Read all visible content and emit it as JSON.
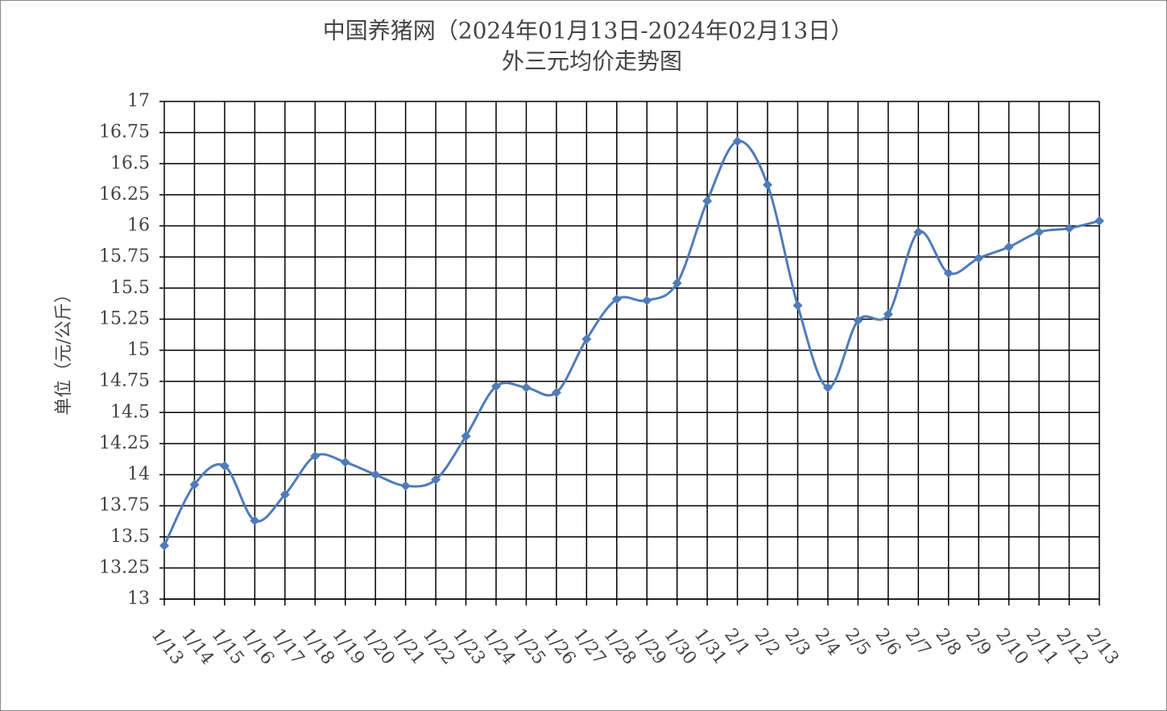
{
  "chart_data": {
    "type": "line",
    "title": [
      "中国养猪网（2024年01月13日-2024年02月13日）",
      "外三元均价走势图"
    ],
    "y_label": "单位（元/公斤）",
    "categories": [
      "1/13",
      "1/14",
      "1/15",
      "1/16",
      "1/17",
      "1/18",
      "1/19",
      "1/20",
      "1/21",
      "1/22",
      "1/23",
      "1/24",
      "1/25",
      "1/26",
      "1/27",
      "1/28",
      "1/29",
      "1/30",
      "1/31",
      "2/1",
      "2/2",
      "2/3",
      "2/4",
      "2/5",
      "2/6",
      "2/7",
      "2/8",
      "2/9",
      "2/10",
      "2/11",
      "2/12",
      "2/13"
    ],
    "values": [
      13.43,
      13.92,
      14.07,
      13.63,
      13.84,
      14.15,
      14.1,
      14.0,
      13.91,
      13.96,
      14.31,
      14.71,
      14.7,
      14.66,
      15.09,
      15.41,
      15.4,
      15.54,
      16.2,
      16.68,
      16.33,
      15.36,
      14.7,
      15.24,
      15.29,
      15.95,
      15.62,
      15.74,
      15.83,
      15.95,
      15.98,
      16.04
    ],
    "color": "#4f7bb8",
    "ylim": [
      13,
      17
    ],
    "yticks": [
      13,
      13.25,
      13.5,
      13.75,
      14,
      14.25,
      14.5,
      14.75,
      15,
      15.25,
      15.5,
      15.75,
      16,
      16.25,
      16.5,
      16.75,
      17
    ],
    "grid": true
  }
}
